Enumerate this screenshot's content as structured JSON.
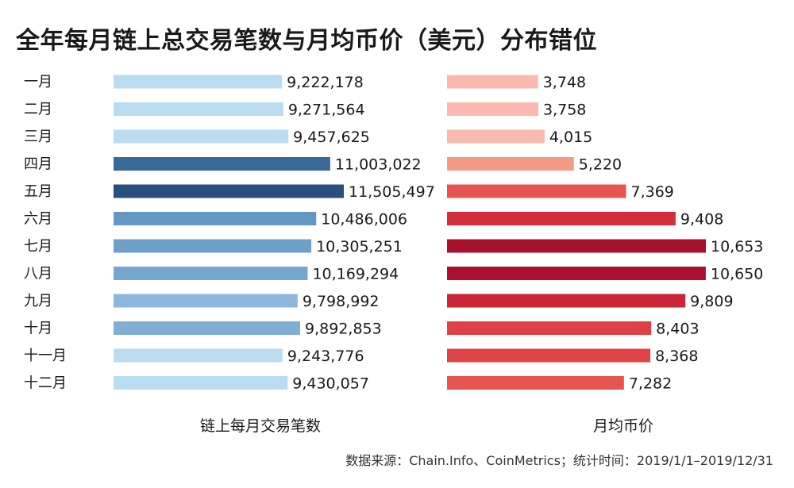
{
  "page": {
    "title": "全年每月链上总交易笔数与月均币价（美元）分布错位",
    "source": "数据来源：Chain.Info、CoinMetrics；统计时间：2019/1/1–2019/12/31"
  },
  "chart_data": [
    {
      "type": "bar",
      "orientation": "horizontal",
      "xlabel": "链上每月交易笔数",
      "categories": [
        "一月",
        "二月",
        "三月",
        "四月",
        "五月",
        "六月",
        "七月",
        "八月",
        "九月",
        "十月",
        "十一月",
        "十二月"
      ],
      "values": [
        9222178,
        9271564,
        9457625,
        11003022,
        11505497,
        10486006,
        10305251,
        10169294,
        9798992,
        9892853,
        9243776,
        9430057
      ],
      "value_labels": [
        "9,222,178",
        "9,271,564",
        "9,457,625",
        "11,003,022",
        "11,505,497",
        "10,486,006",
        "10,305,251",
        "10,169,294",
        "9,798,992",
        "9,892,853",
        "9,243,776",
        "9,430,057"
      ],
      "colors": [
        "#b9dcf0",
        "#b9dcf0",
        "#b9dcf0",
        "#386a98",
        "#28507d",
        "#6498c4",
        "#6e9fca",
        "#74a6d0",
        "#8bb8dc",
        "#80afd6",
        "#b9dcf0",
        "#b9dcf0"
      ]
    },
    {
      "type": "bar",
      "orientation": "horizontal",
      "xlabel": "月均币价",
      "categories": [
        "一月",
        "二月",
        "三月",
        "四月",
        "五月",
        "六月",
        "七月",
        "八月",
        "九月",
        "十月",
        "十一月",
        "十二月"
      ],
      "values": [
        3748,
        3758,
        4015,
        5220,
        7369,
        9408,
        10653,
        10650,
        9809,
        8403,
        8368,
        7282
      ],
      "value_labels": [
        "3,748",
        "3,758",
        "4,015",
        "5,220",
        "7,369",
        "9,408",
        "10,653",
        "10,650",
        "9,809",
        "8,403",
        "8,368",
        "7,282"
      ],
      "colors": [
        "#f9b9ae",
        "#f9b9ae",
        "#f9b9ae",
        "#f59a87",
        "#e85550",
        "#d42d3c",
        "#a8102d",
        "#ab1030",
        "#cd2538",
        "#df4046",
        "#e04446",
        "#e85550"
      ]
    }
  ]
}
